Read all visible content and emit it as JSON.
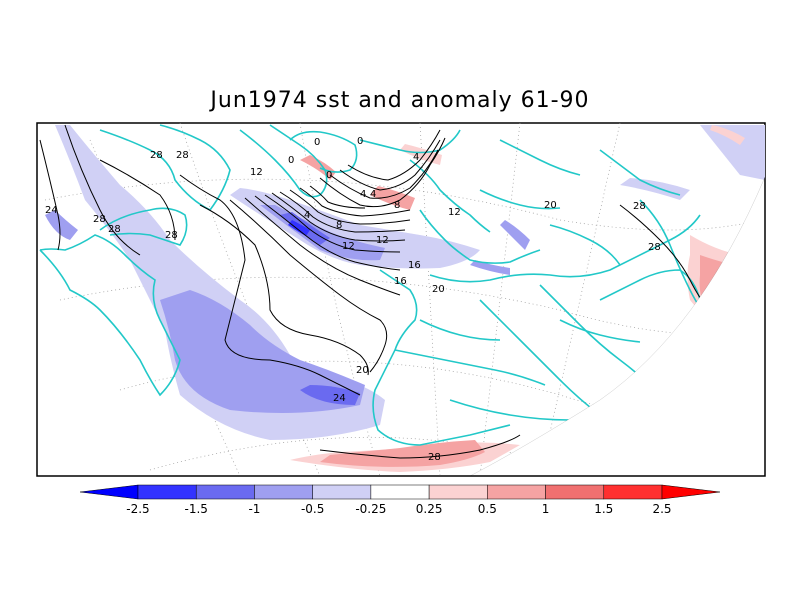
{
  "title": "Jun1974 sst and anomaly 61-90",
  "colors": {
    "coast": "#22c8c8",
    "neg_strong": "#3333ff",
    "neg": "#6a6af0",
    "neg_mid": "#9f9ff0",
    "neg_light": "#d0d0f5",
    "pos_light": "#fbd2d2",
    "pos_mid": "#f5a3a3",
    "pos": "#f07070",
    "pos_strong": "#ff3030"
  },
  "contour_labels": [
    "28",
    "28",
    "24",
    "28",
    "28",
    "28",
    "0",
    "0",
    "0",
    "0",
    "4",
    "4",
    "4",
    "4",
    "8",
    "8",
    "12",
    "12",
    "12",
    "12",
    "16",
    "16",
    "20",
    "20",
    "24",
    "20",
    "28",
    "28",
    "28"
  ],
  "colorbar": {
    "ticks": [
      "-2.5",
      "-1.5",
      "-1",
      "-0.5",
      "-0.25",
      "0.25",
      "0.5",
      "1",
      "1.5",
      "2.5"
    ],
    "colors": [
      "#0000ff",
      "#3333ff",
      "#6a6af0",
      "#9f9ff0",
      "#d0d0f5",
      "#ffffff",
      "#fbd2d2",
      "#f5a3a3",
      "#f07070",
      "#ff3030",
      "#ff0000"
    ]
  }
}
